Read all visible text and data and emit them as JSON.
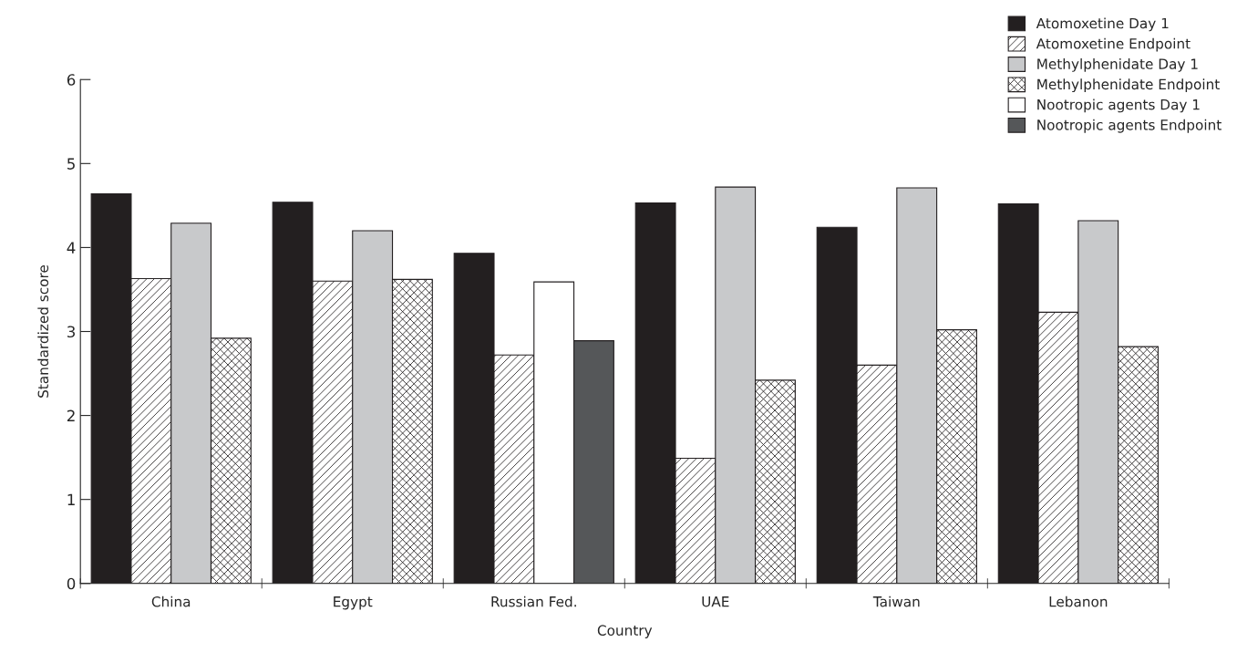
{
  "chart_data": {
    "type": "bar",
    "xlabel": "Country",
    "ylabel": "Standardized score",
    "categories": [
      "China",
      "Egypt",
      "Russian Fed.",
      "UAE",
      "Taiwan",
      "Lebanon"
    ],
    "series": [
      {
        "name": "Atomoxetine Day 1",
        "color": "#231f20",
        "values": [
          4.64,
          4.54,
          3.93,
          4.53,
          4.24,
          4.52
        ]
      },
      {
        "name": "Atomoxetine Endpoint",
        "color": "#231f20",
        "values": [
          3.63,
          3.6,
          2.72,
          1.49,
          2.6,
          3.23
        ]
      },
      {
        "name": "Methylphenidate Day 1",
        "color": "#c8c9cb",
        "values": [
          4.29,
          4.2,
          null,
          4.72,
          4.71,
          4.32
        ]
      },
      {
        "name": "Methylphenidate Endpoint",
        "color": "#231f20",
        "values": [
          2.92,
          3.62,
          null,
          2.42,
          3.02,
          2.82
        ]
      },
      {
        "name": "Nootropic agents Day 1",
        "color": "#ffffff",
        "values": [
          null,
          null,
          3.59,
          null,
          null,
          null
        ]
      },
      {
        "name": "Nootropic agents Endpoint",
        "color": "#555759",
        "values": [
          null,
          null,
          2.89,
          null,
          null,
          null
        ]
      }
    ],
    "ylim": [
      0,
      6
    ],
    "yticks": [
      0,
      1,
      2,
      3,
      4,
      5,
      6
    ],
    "grid": false,
    "legend": "top right"
  }
}
